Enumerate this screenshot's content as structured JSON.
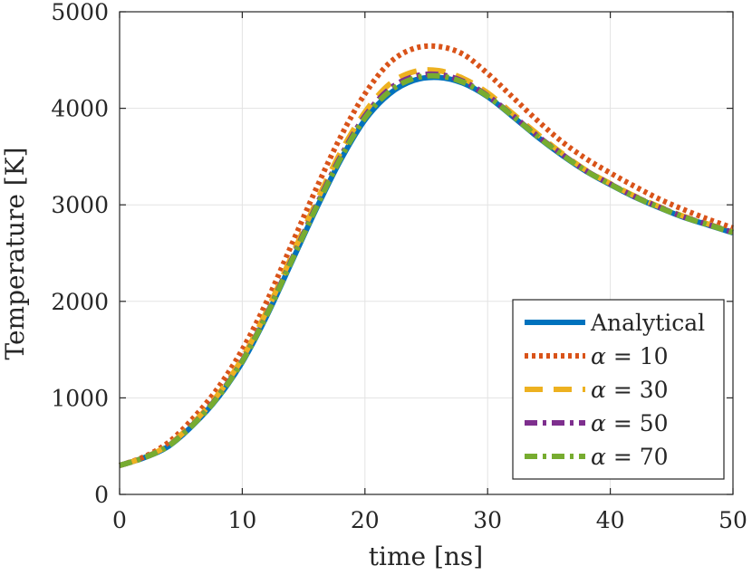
{
  "chart_data": {
    "type": "line",
    "title": "",
    "xlabel": "time [ns]",
    "ylabel": "Temperature [K]",
    "xlim": [
      0,
      50
    ],
    "ylim": [
      0,
      5000
    ],
    "xticks": [
      0,
      10,
      20,
      30,
      40,
      50
    ],
    "yticks": [
      0,
      1000,
      2000,
      3000,
      4000,
      5000
    ],
    "xtick_labels": [
      "0",
      "10",
      "20",
      "30",
      "40",
      "50"
    ],
    "ytick_labels": [
      "0",
      "1000",
      "2000",
      "3000",
      "4000",
      "5000"
    ],
    "grid": true,
    "legend_position": "bottom-right",
    "series": [
      {
        "name": "Analytical",
        "legend_var": "",
        "legend_value": "",
        "color": "#0072BD",
        "style": "solid",
        "x": [
          0,
          2,
          4,
          6,
          8,
          10,
          12,
          14,
          16,
          18,
          20,
          22,
          24,
          26,
          28,
          30,
          32,
          34,
          36,
          38,
          40,
          42,
          44,
          46,
          48,
          50
        ],
        "values": [
          300,
          380,
          500,
          720,
          1000,
          1370,
          1850,
          2400,
          2950,
          3460,
          3880,
          4150,
          4290,
          4320,
          4260,
          4120,
          3920,
          3710,
          3520,
          3350,
          3210,
          3080,
          2970,
          2870,
          2790,
          2710
        ]
      },
      {
        "name": "α = 10",
        "legend_var": "α",
        "legend_value": "= 10",
        "color": "#D95319",
        "style": "dotted",
        "x": [
          0,
          2,
          4,
          6,
          8,
          10,
          12,
          14,
          16,
          18,
          20,
          22,
          24,
          26,
          28,
          30,
          32,
          34,
          36,
          38,
          40,
          42,
          44,
          46,
          48,
          50
        ],
        "values": [
          300,
          390,
          540,
          790,
          1100,
          1500,
          2000,
          2580,
          3160,
          3700,
          4150,
          4470,
          4620,
          4640,
          4560,
          4360,
          4120,
          3880,
          3660,
          3480,
          3330,
          3190,
          3060,
          2950,
          2850,
          2760
        ]
      },
      {
        "name": "α = 30",
        "legend_var": "α",
        "legend_value": "= 30",
        "color": "#EDB120",
        "style": "dashed",
        "x": [
          0,
          2,
          4,
          6,
          8,
          10,
          12,
          14,
          16,
          18,
          20,
          22,
          24,
          26,
          28,
          30,
          32,
          34,
          36,
          38,
          40,
          42,
          44,
          46,
          48,
          50
        ],
        "values": [
          300,
          382,
          512,
          740,
          1030,
          1410,
          1900,
          2460,
          3020,
          3540,
          3960,
          4250,
          4380,
          4390,
          4310,
          4160,
          3950,
          3740,
          3540,
          3360,
          3220,
          3090,
          2980,
          2880,
          2800,
          2720
        ]
      },
      {
        "name": "α = 50",
        "legend_var": "α",
        "legend_value": "= 50",
        "color": "#7E2F8E",
        "style": "dashdot",
        "x": [
          0,
          2,
          4,
          6,
          8,
          10,
          12,
          14,
          16,
          18,
          20,
          22,
          24,
          26,
          28,
          30,
          32,
          34,
          36,
          38,
          40,
          42,
          44,
          46,
          48,
          50
        ],
        "values": [
          300,
          381,
          505,
          728,
          1012,
          1385,
          1868,
          2425,
          2980,
          3495,
          3920,
          4200,
          4330,
          4350,
          4280,
          4130,
          3930,
          3720,
          3530,
          3355,
          3215,
          3085,
          2975,
          2875,
          2795,
          2715
        ]
      },
      {
        "name": "α = 70",
        "legend_var": "α",
        "legend_value": "= 70",
        "color": "#77AC30",
        "style": "dashdot",
        "x": [
          0,
          2,
          4,
          6,
          8,
          10,
          12,
          14,
          16,
          18,
          20,
          22,
          24,
          26,
          28,
          30,
          32,
          34,
          36,
          38,
          40,
          42,
          44,
          46,
          48,
          50
        ],
        "values": [
          300,
          380,
          503,
          724,
          1006,
          1378,
          1860,
          2412,
          2965,
          3478,
          3900,
          4175,
          4310,
          4335,
          4270,
          4125,
          3925,
          3715,
          3525,
          3352,
          3212,
          3082,
          2972,
          2872,
          2792,
          2712
        ]
      }
    ]
  }
}
